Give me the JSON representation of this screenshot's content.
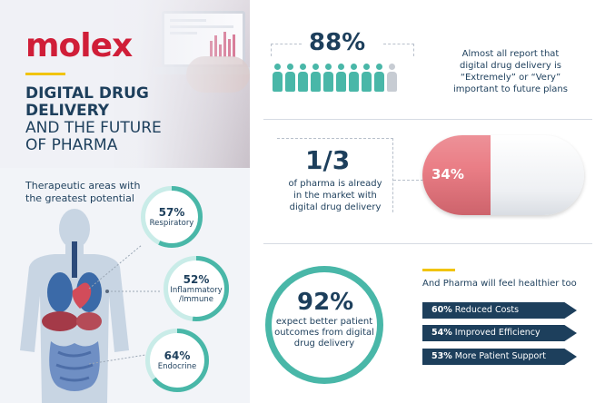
{
  "brand": {
    "logo": "molex",
    "accent": "#d01e38"
  },
  "title": {
    "bold": [
      "DIGITAL DRUG",
      "DELIVERY"
    ],
    "light": [
      "AND THE FUTURE",
      "OF PHARMA"
    ]
  },
  "therapeutic": {
    "title": [
      "Therapeutic areas with",
      "the greatest potential"
    ],
    "areas": [
      {
        "pct": "57%",
        "label": [
          "Respiratory"
        ]
      },
      {
        "pct": "52%",
        "label": [
          "Inflammatory",
          "/Immune"
        ]
      },
      {
        "pct": "64%",
        "label": [
          "Endocrine"
        ]
      }
    ]
  },
  "stat1": {
    "value": "88%",
    "icons_total": 10,
    "icons_filled": 9,
    "text": [
      "Almost all report that",
      "digital drug delivery is",
      "“Extremely” or “Very”",
      "important to future plans"
    ]
  },
  "stat2": {
    "value": "1/3",
    "text": [
      "of pharma is already",
      "in the market with",
      "digital drug delivery"
    ],
    "pill_value": "34%"
  },
  "stat3": {
    "value": "92%",
    "text": [
      "expect better patient",
      "outcomes from digital",
      "drug delivery"
    ]
  },
  "healthier": {
    "title": "And Pharma will feel healthier too",
    "items": [
      {
        "pct": "60%",
        "label": "Reduced Costs"
      },
      {
        "pct": "54%",
        "label": "Improved Efficiency"
      },
      {
        "pct": "53%",
        "label": "More Patient Support"
      }
    ]
  },
  "colors": {
    "navy": "#1d3f5c",
    "teal": "#49b7a8",
    "pink": "#ea7e86",
    "gold": "#f1c40f"
  }
}
